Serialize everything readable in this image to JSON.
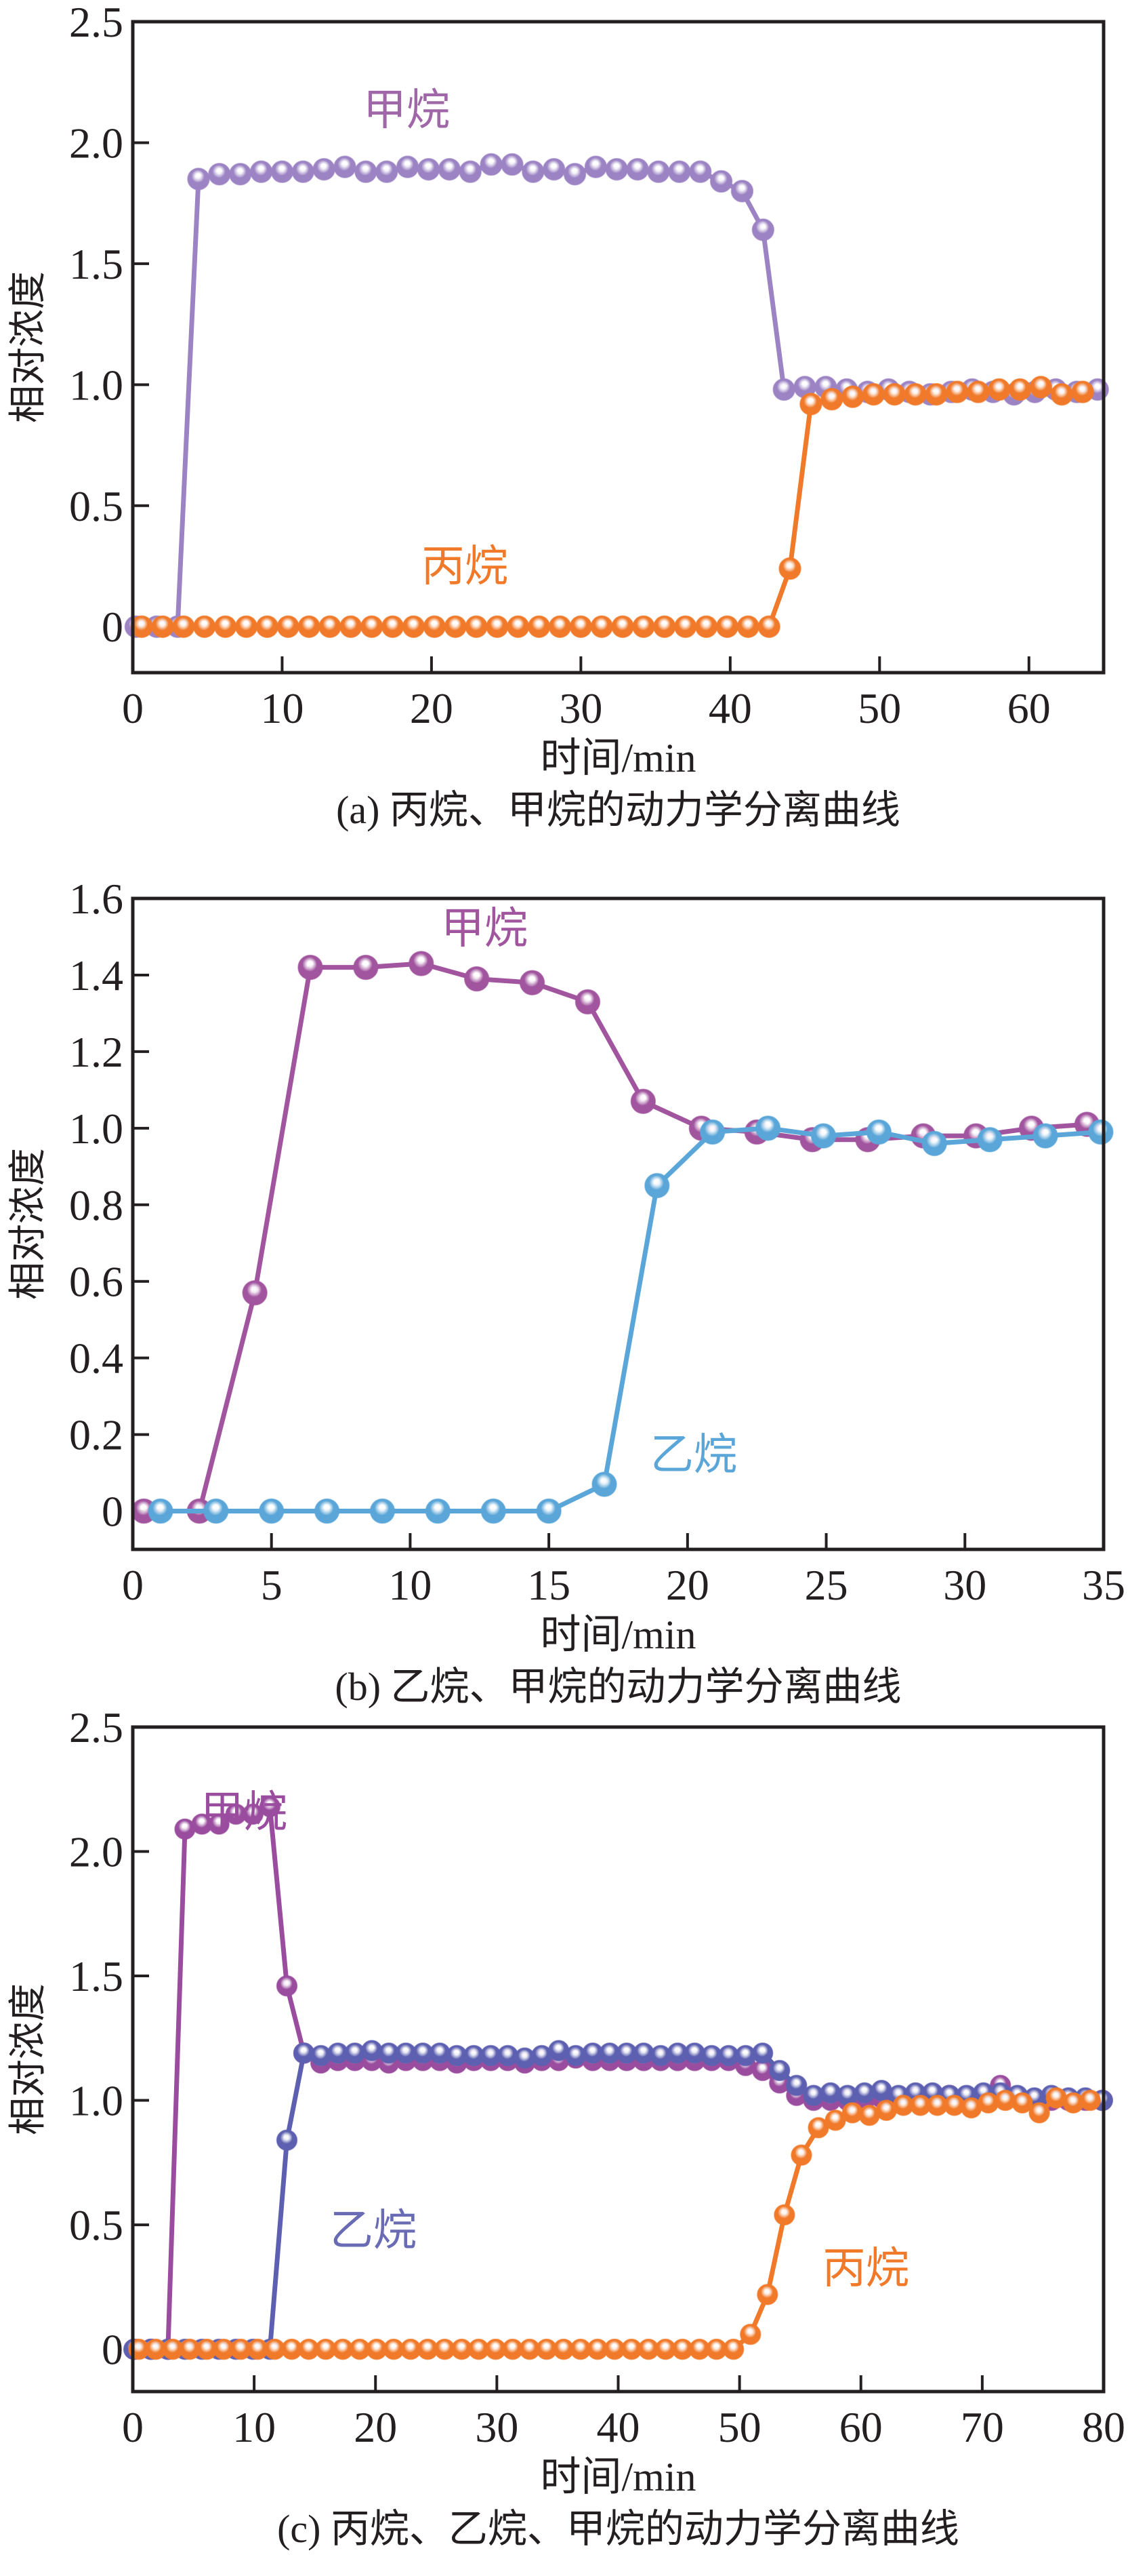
{
  "chart_data": [
    {
      "type": "line",
      "caption": "(a) 丙烷、甲烷的动力学分离曲线",
      "xlabel": "时间/min",
      "ylabel": "相对浓度",
      "xlim": [
        0,
        65
      ],
      "ylim": [
        -0.19,
        2.5
      ],
      "xticks": [
        0,
        10,
        20,
        30,
        40,
        50,
        60
      ],
      "xtick_labels": [
        "0",
        "10",
        "20",
        "30",
        "40",
        "50",
        "60"
      ],
      "yticks": [
        0,
        0.5,
        1.0,
        1.5,
        2.0,
        2.5
      ],
      "ytick_labels": [
        "0",
        "0.5",
        "1.0",
        "1.5",
        "2.0",
        "2.5"
      ],
      "grid": false,
      "series": [
        {
          "name": "甲烷",
          "color": "#9c84c4",
          "label_color": "#a067a8",
          "x": [
            0.2,
            1.6,
            3.0,
            4.4,
            5.8,
            7.2,
            8.6,
            10.0,
            11.4,
            12.8,
            14.2,
            15.6,
            17.0,
            18.4,
            19.8,
            21.2,
            22.6,
            24.0,
            25.4,
            26.8,
            28.2,
            29.6,
            31.0,
            32.4,
            33.8,
            35.2,
            36.6,
            38.0,
            39.4,
            40.8,
            42.2,
            43.6,
            45.0,
            46.4,
            47.8,
            49.2,
            50.6,
            52.0,
            53.4,
            54.8,
            56.2,
            57.6,
            59.0,
            60.4,
            61.8,
            63.2,
            64.6
          ],
          "y": [
            0,
            0,
            0,
            1.85,
            1.87,
            1.87,
            1.88,
            1.88,
            1.88,
            1.89,
            1.9,
            1.88,
            1.88,
            1.9,
            1.89,
            1.89,
            1.88,
            1.91,
            1.91,
            1.88,
            1.89,
            1.87,
            1.9,
            1.89,
            1.89,
            1.88,
            1.88,
            1.88,
            1.84,
            1.8,
            1.64,
            0.98,
            0.99,
            0.99,
            0.98,
            0.97,
            0.98,
            0.97,
            0.96,
            0.97,
            0.98,
            0.97,
            0.96,
            0.97,
            0.98,
            0.97,
            0.98
          ]
        },
        {
          "name": "丙烷",
          "color": "#f07a2a",
          "label_color": "#f07a2a",
          "x": [
            0.6,
            2.0,
            3.4,
            4.8,
            6.2,
            7.6,
            9.0,
            10.4,
            11.8,
            13.2,
            14.6,
            16.0,
            17.4,
            18.8,
            20.2,
            21.6,
            23.0,
            24.4,
            25.8,
            27.2,
            28.6,
            30.0,
            31.4,
            32.8,
            34.2,
            35.6,
            37.0,
            38.4,
            39.8,
            41.2,
            42.6,
            44.0,
            45.4,
            46.8,
            48.2,
            49.6,
            51.0,
            52.4,
            53.8,
            55.2,
            56.6,
            58.0,
            59.4,
            60.8,
            62.2,
            63.6
          ],
          "y": [
            0,
            0,
            0,
            0,
            0,
            0,
            0,
            0,
            0,
            0,
            0,
            0,
            0,
            0,
            0,
            0,
            0,
            0,
            0,
            0,
            0,
            0,
            0,
            0,
            0,
            0,
            0,
            0,
            0,
            0,
            0,
            0.24,
            0.92,
            0.94,
            0.95,
            0.96,
            0.96,
            0.96,
            0.96,
            0.97,
            0.97,
            0.98,
            0.98,
            0.99,
            0.96,
            0.97
          ]
        }
      ]
    },
    {
      "type": "line",
      "caption": "(b) 乙烷、甲烷的动力学分离曲线",
      "xlabel": "时间/min",
      "ylabel": "相对浓度",
      "xlim": [
        0,
        35
      ],
      "ylim": [
        -0.1,
        1.6
      ],
      "xticks": [
        0,
        5,
        10,
        15,
        20,
        25,
        30,
        35
      ],
      "xtick_labels": [
        "0",
        "5",
        "10",
        "15",
        "20",
        "25",
        "30",
        "35"
      ],
      "yticks": [
        0,
        0.2,
        0.4,
        0.6,
        0.8,
        1.0,
        1.2,
        1.4,
        1.6
      ],
      "ytick_labels": [
        "0",
        "0.2",
        "0.4",
        "0.6",
        "0.8",
        "1.0",
        "1.2",
        "1.4",
        "1.6"
      ],
      "grid": false,
      "series": [
        {
          "name": "甲烷",
          "color": "#a2559f",
          "label_color": "#a2559f",
          "x": [
            0.4,
            2.4,
            4.4,
            6.4,
            8.4,
            10.4,
            12.4,
            14.4,
            16.4,
            18.4,
            20.5,
            22.5,
            24.5,
            26.5,
            28.5,
            30.4,
            32.4,
            34.4
          ],
          "y": [
            0,
            0,
            0.57,
            1.42,
            1.42,
            1.43,
            1.39,
            1.38,
            1.33,
            1.07,
            1.0,
            0.99,
            0.97,
            0.97,
            0.98,
            0.98,
            1.0,
            1.01
          ]
        },
        {
          "name": "乙烷",
          "color": "#5ba6d8",
          "label_color": "#5ba6d8",
          "x": [
            1.0,
            3.0,
            5.0,
            7.0,
            9.0,
            11.0,
            13.0,
            15.0,
            17.0,
            18.9,
            20.9,
            22.9,
            24.9,
            26.9,
            28.9,
            30.9,
            32.9,
            34.9
          ],
          "y": [
            0,
            0,
            0,
            0,
            0,
            0,
            0,
            0,
            0.07,
            0.85,
            0.99,
            1.0,
            0.98,
            0.99,
            0.96,
            0.97,
            0.98,
            0.99
          ]
        }
      ]
    },
    {
      "type": "line",
      "caption": "(c) 丙烷、乙烷、甲烷的动力学分离曲线",
      "xlabel": "时间/min",
      "ylabel": "相对浓度",
      "xlim": [
        0,
        80
      ],
      "ylim": [
        -0.17,
        2.5
      ],
      "xticks": [
        0,
        10,
        20,
        30,
        40,
        50,
        60,
        70,
        80
      ],
      "xtick_labels": [
        "0",
        "10",
        "20",
        "30",
        "40",
        "50",
        "60",
        "70",
        "80"
      ],
      "yticks": [
        0,
        0.5,
        1.0,
        1.5,
        2.0,
        2.5
      ],
      "ytick_labels": [
        "0",
        "0.5",
        "1.0",
        "1.5",
        "2.0",
        "2.5"
      ],
      "grid": false,
      "series": [
        {
          "name": "甲烷",
          "color": "#9a4d9e",
          "label_color": "#9a4d9e",
          "x": [
            0.1,
            1.5,
            2.9,
            4.3,
            5.7,
            7.1,
            8.5,
            9.9,
            11.3,
            12.7,
            14.1,
            15.5,
            16.9,
            18.3,
            19.7,
            21.1,
            22.5,
            23.9,
            25.3,
            26.7,
            28.1,
            29.5,
            30.9,
            32.3,
            33.7,
            35.1,
            36.5,
            37.9,
            39.3,
            40.7,
            42.1,
            43.5,
            44.9,
            46.3,
            47.7,
            49.1,
            50.5,
            51.9,
            53.3,
            54.7,
            56.1,
            57.5,
            58.9,
            60.3,
            61.7,
            63.1,
            64.5,
            65.9,
            67.3,
            68.7,
            70.1,
            71.5,
            72.9,
            74.3,
            75.7,
            77.1,
            78.5,
            79.9
          ],
          "y": [
            0,
            0,
            0,
            2.09,
            2.11,
            2.11,
            2.15,
            2.15,
            2.18,
            1.46,
            1.19,
            1.15,
            1.16,
            1.16,
            1.16,
            1.15,
            1.16,
            1.16,
            1.16,
            1.15,
            1.16,
            1.16,
            1.16,
            1.15,
            1.16,
            1.16,
            1.17,
            1.16,
            1.16,
            1.16,
            1.16,
            1.16,
            1.16,
            1.16,
            1.16,
            1.16,
            1.14,
            1.12,
            1.07,
            1.02,
            1.0,
            1.0,
            1.0,
            1.0,
            1.01,
            1.0,
            1.01,
            1.0,
            1.02,
            1.01,
            1.02,
            1.06,
            1.01,
            1.0,
            1.0,
            1.0,
            1.0,
            1.0
          ]
        },
        {
          "name": "乙烷",
          "color": "#5d60b0",
          "label_color": "#6a6bb5",
          "x": [
            0.1,
            1.5,
            2.9,
            4.3,
            5.7,
            7.1,
            8.5,
            9.9,
            11.3,
            12.7,
            14.1,
            15.5,
            16.9,
            18.3,
            19.7,
            21.1,
            22.5,
            23.9,
            25.3,
            26.7,
            28.1,
            29.5,
            30.9,
            32.3,
            33.7,
            35.1,
            36.5,
            37.9,
            39.3,
            40.7,
            42.1,
            43.5,
            44.9,
            46.3,
            47.7,
            49.1,
            50.5,
            51.9,
            53.3,
            54.7,
            56.1,
            57.5,
            58.9,
            60.3,
            61.7,
            63.1,
            64.5,
            65.9,
            67.3,
            68.7,
            70.1,
            71.5,
            72.9,
            74.3,
            75.7,
            77.1,
            78.5,
            79.9
          ],
          "y": [
            0,
            0,
            0,
            0,
            0,
            0,
            0,
            0,
            0,
            0.84,
            1.19,
            1.18,
            1.19,
            1.19,
            1.2,
            1.19,
            1.19,
            1.19,
            1.19,
            1.18,
            1.18,
            1.18,
            1.18,
            1.17,
            1.18,
            1.2,
            1.18,
            1.19,
            1.19,
            1.19,
            1.19,
            1.18,
            1.19,
            1.19,
            1.18,
            1.18,
            1.18,
            1.19,
            1.12,
            1.06,
            1.02,
            1.03,
            1.02,
            1.03,
            1.04,
            1.02,
            1.03,
            1.03,
            1.02,
            1.02,
            1.03,
            1.03,
            1.02,
            1.01,
            1.02,
            1.01,
            1.01,
            1.0
          ]
        },
        {
          "name": "丙烷",
          "color": "#f07a2a",
          "label_color": "#f07a2a",
          "x": [
            0.5,
            1.9,
            3.3,
            4.7,
            6.1,
            7.5,
            8.9,
            10.3,
            11.7,
            13.1,
            14.5,
            15.9,
            17.3,
            18.7,
            20.1,
            21.5,
            22.9,
            24.3,
            25.7,
            27.1,
            28.5,
            29.9,
            31.3,
            32.7,
            34.1,
            35.5,
            36.9,
            38.3,
            39.7,
            41.1,
            42.5,
            43.9,
            45.3,
            46.7,
            48.1,
            49.5,
            50.9,
            52.3,
            53.7,
            55.1,
            56.5,
            57.9,
            59.3,
            60.7,
            62.1,
            63.5,
            64.9,
            66.3,
            67.7,
            69.1,
            70.5,
            71.9,
            73.3,
            74.7,
            76.1,
            77.5,
            78.9
          ],
          "y": [
            0,
            0,
            0,
            0,
            0,
            0,
            0,
            0,
            0,
            0,
            0,
            0,
            0,
            0,
            0,
            0,
            0,
            0,
            0,
            0,
            0,
            0,
            0,
            0,
            0,
            0,
            0,
            0,
            0,
            0,
            0,
            0,
            0,
            0,
            0,
            0,
            0.06,
            0.22,
            0.54,
            0.78,
            0.89,
            0.92,
            0.95,
            0.94,
            0.96,
            0.98,
            0.98,
            0.98,
            0.98,
            0.97,
            0.99,
            1.0,
            0.99,
            0.95,
            1.01,
            0.99,
            1.0
          ]
        }
      ]
    }
  ]
}
